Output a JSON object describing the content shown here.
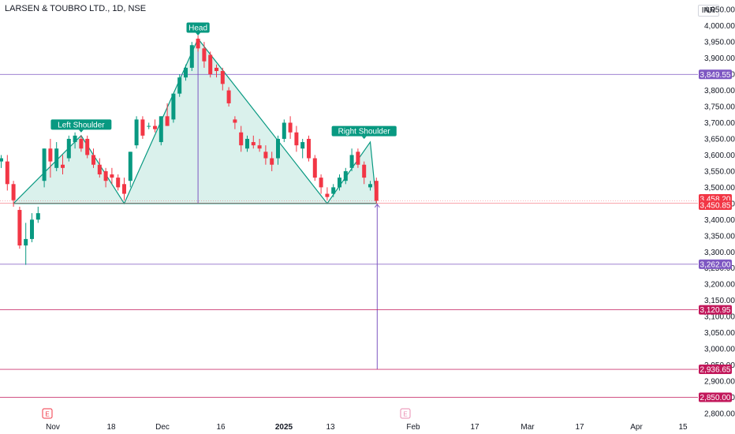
{
  "symbol_title": "LARSEN & TOUBRO LTD., 1D, NSE",
  "currency": "INR",
  "colors": {
    "up": "#089981",
    "down": "#f23645",
    "pattern_fill": "#d4efe9",
    "pattern_line": "#089981",
    "purple": "#7e57c2",
    "crimson": "#c2185b",
    "grid": "#f0f3fa"
  },
  "chart_data": {
    "type": "candlestick",
    "title": "LARSEN & TOUBRO LTD., 1D, NSE",
    "ylim": [
      2800,
      4070
    ],
    "y_ticks": [
      "4,050.00",
      "4,000.00",
      "3,950.00",
      "3,900.00",
      "3,850.00",
      "3,800.00",
      "3,750.00",
      "3,700.00",
      "3,650.00",
      "3,600.00",
      "3,550.00",
      "3,500.00",
      "3,450.00",
      "3,400.00",
      "3,350.00",
      "3,300.00",
      "3,250.00",
      "3,200.00",
      "3,150.00",
      "3,100.00",
      "3,050.00",
      "3,000.00",
      "2,950.00",
      "2,900.00",
      "2,850.00",
      "2,800.00"
    ],
    "x_ticks": [
      "Nov",
      "18",
      "Dec",
      "16",
      "2025",
      "13",
      "Feb",
      "17",
      "Mar",
      "17",
      "Apr",
      "15"
    ],
    "candles": [
      {
        "o": 3580,
        "h": 3600,
        "l": 3560,
        "c": 3590
      },
      {
        "o": 3580,
        "h": 3600,
        "l": 3490,
        "c": 3510
      },
      {
        "o": 3510,
        "h": 3520,
        "l": 3440,
        "c": 3460
      },
      {
        "o": 3430,
        "h": 3440,
        "l": 3310,
        "c": 3320
      },
      {
        "o": 3320,
        "h": 3390,
        "l": 3260,
        "c": 3340
      },
      {
        "o": 3340,
        "h": 3420,
        "l": 3330,
        "c": 3400
      },
      {
        "o": 3400,
        "h": 3440,
        "l": 3390,
        "c": 3420
      },
      {
        "o": 3520,
        "h": 3620,
        "l": 3500,
        "c": 3620
      },
      {
        "o": 3620,
        "h": 3650,
        "l": 3530,
        "c": 3580
      },
      {
        "o": 3560,
        "h": 3640,
        "l": 3550,
        "c": 3620
      },
      {
        "o": 3570,
        "h": 3600,
        "l": 3540,
        "c": 3560
      },
      {
        "o": 3590,
        "h": 3660,
        "l": 3580,
        "c": 3650
      },
      {
        "o": 3640,
        "h": 3670,
        "l": 3620,
        "c": 3660
      },
      {
        "o": 3650,
        "h": 3660,
        "l": 3610,
        "c": 3620
      },
      {
        "o": 3650,
        "h": 3660,
        "l": 3590,
        "c": 3600
      },
      {
        "o": 3600,
        "h": 3620,
        "l": 3560,
        "c": 3570
      },
      {
        "o": 3570,
        "h": 3590,
        "l": 3530,
        "c": 3540
      },
      {
        "o": 3550,
        "h": 3560,
        "l": 3500,
        "c": 3520
      },
      {
        "o": 3540,
        "h": 3560,
        "l": 3510,
        "c": 3530
      },
      {
        "o": 3530,
        "h": 3540,
        "l": 3490,
        "c": 3500
      },
      {
        "o": 3510,
        "h": 3530,
        "l": 3460,
        "c": 3480
      },
      {
        "o": 3520,
        "h": 3610,
        "l": 3500,
        "c": 3610
      },
      {
        "o": 3630,
        "h": 3720,
        "l": 3620,
        "c": 3710
      },
      {
        "o": 3710,
        "h": 3720,
        "l": 3650,
        "c": 3660
      },
      {
        "o": 3690,
        "h": 3700,
        "l": 3680,
        "c": 3690
      },
      {
        "o": 3690,
        "h": 3710,
        "l": 3670,
        "c": 3680
      },
      {
        "o": 3640,
        "h": 3720,
        "l": 3630,
        "c": 3720
      },
      {
        "o": 3720,
        "h": 3760,
        "l": 3690,
        "c": 3690
      },
      {
        "o": 3710,
        "h": 3790,
        "l": 3700,
        "c": 3790
      },
      {
        "o": 3790,
        "h": 3850,
        "l": 3780,
        "c": 3840
      },
      {
        "o": 3840,
        "h": 3880,
        "l": 3830,
        "c": 3870
      },
      {
        "o": 3870,
        "h": 3950,
        "l": 3860,
        "c": 3940
      },
      {
        "o": 3960,
        "h": 3970,
        "l": 3920,
        "c": 3930
      },
      {
        "o": 3930,
        "h": 3950,
        "l": 3870,
        "c": 3890
      },
      {
        "o": 3910,
        "h": 3920,
        "l": 3840,
        "c": 3850
      },
      {
        "o": 3870,
        "h": 3880,
        "l": 3840,
        "c": 3860
      },
      {
        "o": 3860,
        "h": 3870,
        "l": 3800,
        "c": 3820
      },
      {
        "o": 3800,
        "h": 3810,
        "l": 3750,
        "c": 3760
      },
      {
        "o": 3710,
        "h": 3720,
        "l": 3680,
        "c": 3700
      },
      {
        "o": 3670,
        "h": 3690,
        "l": 3610,
        "c": 3630
      },
      {
        "o": 3620,
        "h": 3660,
        "l": 3610,
        "c": 3650
      },
      {
        "o": 3640,
        "h": 3660,
        "l": 3620,
        "c": 3630
      },
      {
        "o": 3630,
        "h": 3650,
        "l": 3610,
        "c": 3620
      },
      {
        "o": 3610,
        "h": 3630,
        "l": 3570,
        "c": 3590
      },
      {
        "o": 3590,
        "h": 3610,
        "l": 3550,
        "c": 3570
      },
      {
        "o": 3590,
        "h": 3660,
        "l": 3570,
        "c": 3650
      },
      {
        "o": 3650,
        "h": 3710,
        "l": 3640,
        "c": 3700
      },
      {
        "o": 3700,
        "h": 3720,
        "l": 3650,
        "c": 3670
      },
      {
        "o": 3670,
        "h": 3690,
        "l": 3610,
        "c": 3630
      },
      {
        "o": 3620,
        "h": 3650,
        "l": 3590,
        "c": 3640
      },
      {
        "o": 3650,
        "h": 3660,
        "l": 3580,
        "c": 3590
      },
      {
        "o": 3590,
        "h": 3600,
        "l": 3520,
        "c": 3530
      },
      {
        "o": 3530,
        "h": 3540,
        "l": 3480,
        "c": 3500
      },
      {
        "o": 3480,
        "h": 3500,
        "l": 3460,
        "c": 3470
      },
      {
        "o": 3480,
        "h": 3510,
        "l": 3470,
        "c": 3500
      },
      {
        "o": 3500,
        "h": 3540,
        "l": 3490,
        "c": 3530
      },
      {
        "o": 3520,
        "h": 3560,
        "l": 3510,
        "c": 3550
      },
      {
        "o": 3560,
        "h": 3620,
        "l": 3550,
        "c": 3600
      },
      {
        "o": 3610,
        "h": 3620,
        "l": 3560,
        "c": 3570
      },
      {
        "o": 3570,
        "h": 3580,
        "l": 3510,
        "c": 3530
      },
      {
        "o": 3500,
        "h": 3520,
        "l": 3490,
        "c": 3510
      },
      {
        "o": 3520,
        "h": 3530,
        "l": 3450,
        "c": 3458.2
      }
    ],
    "price_lines": [
      {
        "value": 3849.55,
        "label": "3,849.55",
        "color": "purple"
      },
      {
        "value": 3262.0,
        "label": "3,262.00",
        "color": "purple"
      },
      {
        "value": 3120.95,
        "label": "3,120.95",
        "color": "crimson"
      },
      {
        "value": 2936.65,
        "label": "2,936.65",
        "color": "crimson"
      },
      {
        "value": 2850.0,
        "label": "2,850.00",
        "color": "crimson"
      }
    ],
    "current_price": {
      "value": 3458.2,
      "label": "3,458.20"
    },
    "neckline_price": {
      "value": 3450.85,
      "label": "3,450.85"
    },
    "pattern": {
      "points": [
        {
          "bar": 2,
          "price": 3450
        },
        {
          "bar": 13,
          "price": 3660
        },
        {
          "bar": 20,
          "price": 3450
        },
        {
          "bar": 32,
          "price": 3960
        },
        {
          "bar": 53,
          "price": 3450
        },
        {
          "bar": 60,
          "price": 3640
        },
        {
          "bar": 61,
          "price": 3450
        }
      ],
      "labels": [
        {
          "text": "Left Shoulder",
          "bar": 13,
          "price": 3660
        },
        {
          "text": "Head",
          "bar": 32,
          "price": 3960
        },
        {
          "text": "Right Shoulder",
          "bar": 59,
          "price": 3640
        }
      ],
      "target_from_price": 3450,
      "target_to_price": 2936.65
    },
    "earnings_markers": [
      "E",
      "E"
    ]
  }
}
